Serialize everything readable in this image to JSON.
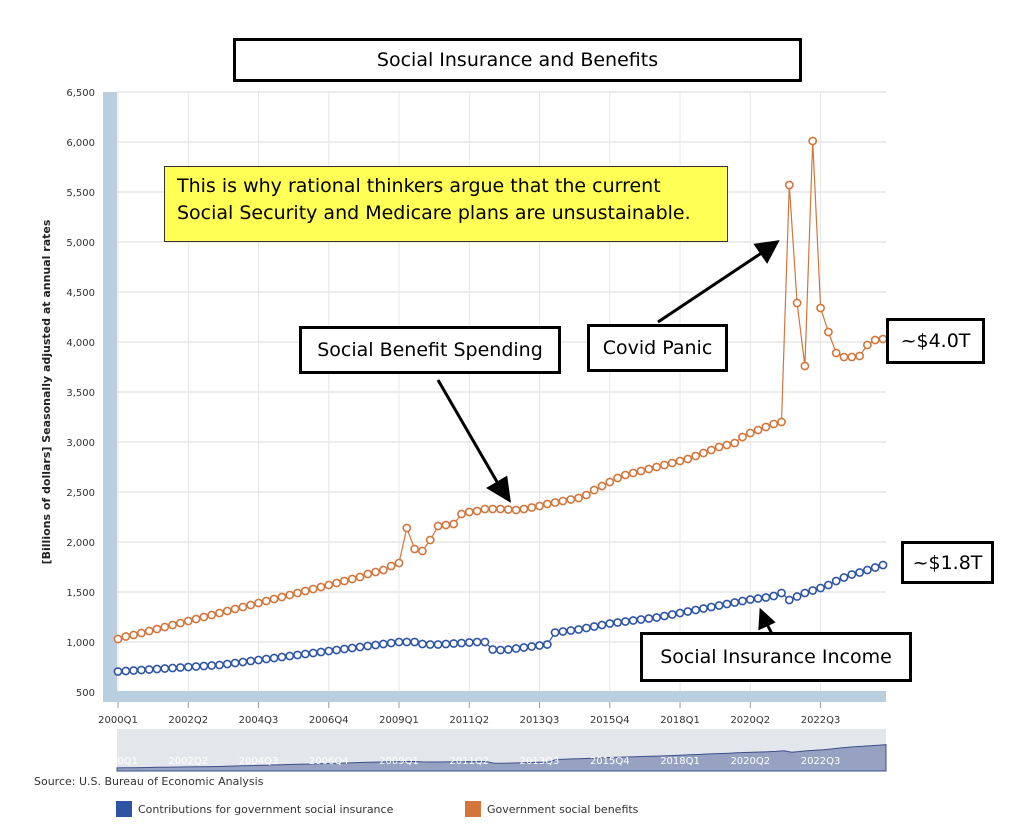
{
  "colors": {
    "insurance": "#2e55a3",
    "benefits": "#d2763c",
    "axis_bar": "#b9cfdf",
    "navigator_fill": "#97a2c2",
    "navigator_bg": "#e3e6ea"
  },
  "annotations": {
    "note": "This is why rational thinkers argue that the current Social Security and Medicare plans are unsustainable.",
    "benefit_label": "Social Benefit Spending",
    "covid_label": "Covid Panic",
    "income_label": "Social Insurance Income",
    "end_benefits": "~$4.0T",
    "end_insurance": "~$1.8T"
  },
  "source": "Source: U.S. Bureau of Economic Analysis",
  "chart_data": {
    "type": "line",
    "title": "Social Insurance and Benefits",
    "ylabel": "[Billions of dollars] Seasonally adjusted at annual rates",
    "xlabel": "",
    "ylim": [
      500,
      6500
    ],
    "yticks": [
      500,
      1000,
      1500,
      2000,
      2500,
      3000,
      3500,
      4000,
      4500,
      5000,
      5500,
      6000,
      6500
    ],
    "ytick_labels": [
      "500",
      "1,000",
      "1,500",
      "2,000",
      "2,500",
      "3,000",
      "3,500",
      "4,000",
      "4,500",
      "5,000",
      "5,500",
      "6,000",
      "6,500"
    ],
    "xtick_labels": [
      "2000Q1",
      "2002Q2",
      "2004Q3",
      "2006Q4",
      "2009Q1",
      "2011Q2",
      "2013Q3",
      "2015Q4",
      "2018Q1",
      "2020Q2",
      "2022Q3"
    ],
    "xtick_indices": [
      0,
      9,
      18,
      27,
      36,
      45,
      54,
      63,
      72,
      81,
      90
    ],
    "grid": true,
    "legend_position": "bottom",
    "series": [
      {
        "name": "Contributions for government social insurance",
        "values": [
          705,
          710,
          715,
          720,
          725,
          730,
          735,
          740,
          745,
          750,
          755,
          760,
          765,
          770,
          780,
          790,
          800,
          810,
          820,
          830,
          840,
          850,
          860,
          870,
          880,
          890,
          900,
          910,
          920,
          930,
          940,
          950,
          960,
          970,
          980,
          990,
          1000,
          1000,
          1000,
          980,
          975,
          975,
          980,
          985,
          990,
          995,
          1000,
          1000,
          925,
          920,
          925,
          935,
          945,
          955,
          965,
          975,
          1095,
          1105,
          1115,
          1125,
          1140,
          1155,
          1170,
          1185,
          1195,
          1205,
          1215,
          1225,
          1235,
          1245,
          1260,
          1275,
          1290,
          1305,
          1320,
          1335,
          1350,
          1365,
          1380,
          1395,
          1410,
          1425,
          1435,
          1445,
          1460,
          1490,
          1420,
          1455,
          1490,
          1515,
          1540,
          1570,
          1610,
          1645,
          1675,
          1695,
          1720,
          1745,
          1770
        ]
      },
      {
        "name": "Government social benefits",
        "values": [
          1030,
          1055,
          1070,
          1090,
          1110,
          1130,
          1150,
          1170,
          1190,
          1210,
          1230,
          1250,
          1270,
          1290,
          1310,
          1330,
          1350,
          1370,
          1390,
          1410,
          1430,
          1450,
          1470,
          1490,
          1510,
          1530,
          1550,
          1570,
          1590,
          1610,
          1630,
          1650,
          1680,
          1700,
          1720,
          1760,
          1790,
          2140,
          1930,
          1910,
          2020,
          2160,
          2170,
          2180,
          2280,
          2300,
          2310,
          2330,
          2330,
          2330,
          2325,
          2320,
          2330,
          2345,
          2360,
          2380,
          2395,
          2410,
          2425,
          2440,
          2470,
          2520,
          2560,
          2600,
          2640,
          2670,
          2690,
          2710,
          2730,
          2750,
          2770,
          2790,
          2810,
          2830,
          2860,
          2890,
          2920,
          2950,
          2970,
          2990,
          3050,
          3090,
          3120,
          3150,
          3180,
          3200,
          5570,
          4390,
          3760,
          6010,
          4340,
          4100,
          3890,
          3850,
          3850,
          3860,
          3970,
          4020,
          4030
        ]
      }
    ]
  }
}
